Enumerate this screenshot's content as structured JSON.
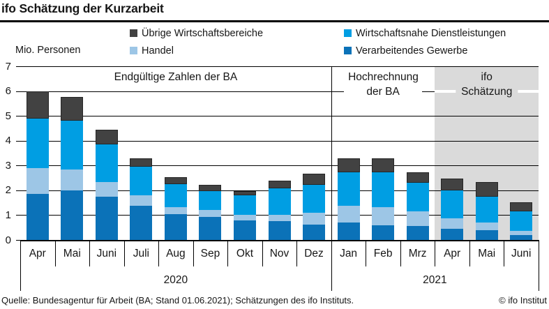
{
  "header": {
    "title": "ifo Schätzung der Kurzarbeit"
  },
  "unit_label": "Mio. Personen",
  "legend": {
    "items": [
      {
        "label": "Übrige Wirtschaftsbereiche",
        "color": "#424242"
      },
      {
        "label": "Wirtschaftsnahe Dienstleistungen",
        "color": "#009EE3"
      },
      {
        "label": "Handel",
        "color": "#9DC6E6"
      },
      {
        "label": "Verarbeitendes Gewerbe",
        "color": "#0B72B8"
      }
    ]
  },
  "chart_data": {
    "type": "bar",
    "stacked": true,
    "title": "ifo Schätzung der Kurzarbeit",
    "ylabel": "Mio. Personen",
    "ylim": [
      0,
      7
    ],
    "yticks": [
      0,
      1,
      2,
      3,
      4,
      5,
      6,
      7
    ],
    "grid": true,
    "categories": [
      "Apr",
      "Mai",
      "Juni",
      "Juli",
      "Aug",
      "Sep",
      "Okt",
      "Nov",
      "Dez",
      "Jan",
      "Feb",
      "Mrz",
      "Apr",
      "Mai",
      "Juni"
    ],
    "year_groups": [
      {
        "label": "2020",
        "from": 0,
        "to": 9
      },
      {
        "label": "2021",
        "from": 9,
        "to": 15
      }
    ],
    "sections": [
      {
        "label": "Endgültige Zahlen der BA",
        "from": 0,
        "to": 9,
        "shaded": false,
        "divider_left": false
      },
      {
        "label": "Hochrechnung der BA",
        "from": 9,
        "to": 12,
        "shaded": false,
        "divider_left": true
      },
      {
        "label": "ifo Schätzung",
        "from": 12,
        "to": 15,
        "shaded": true,
        "divider_left": false
      }
    ],
    "shaded_color": "#DADADA",
    "series": [
      {
        "name": "Verarbeitendes Gewerbe",
        "color": "#0B72B8",
        "values": [
          1.85,
          2.0,
          1.75,
          1.38,
          1.05,
          0.93,
          0.8,
          0.76,
          0.62,
          0.71,
          0.6,
          0.55,
          0.45,
          0.38,
          0.2
        ]
      },
      {
        "name": "Handel",
        "color": "#9DC6E6",
        "values": [
          1.05,
          0.85,
          0.57,
          0.42,
          0.28,
          0.28,
          0.2,
          0.26,
          0.47,
          0.68,
          0.71,
          0.59,
          0.41,
          0.31,
          0.16
        ]
      },
      {
        "name": "Wirtschaftsnahe Dienstleistungen",
        "color": "#009EE3",
        "values": [
          2.0,
          1.95,
          1.53,
          1.15,
          0.92,
          0.76,
          0.8,
          1.06,
          1.13,
          1.34,
          1.42,
          1.16,
          1.14,
          1.06,
          0.79
        ]
      },
      {
        "name": "Übrige Wirtschaftsbereiche",
        "color": "#424242",
        "values": [
          1.1,
          0.95,
          0.6,
          0.35,
          0.28,
          0.25,
          0.17,
          0.3,
          0.44,
          0.57,
          0.55,
          0.43,
          0.47,
          0.57,
          0.36
        ]
      }
    ]
  },
  "footer": {
    "source": "Quelle: Bundesagentur für Arbeit (BA; Stand 01.06.2021); Schätzungen des ifo Instituts.",
    "copyright": "© ifo Institut"
  }
}
